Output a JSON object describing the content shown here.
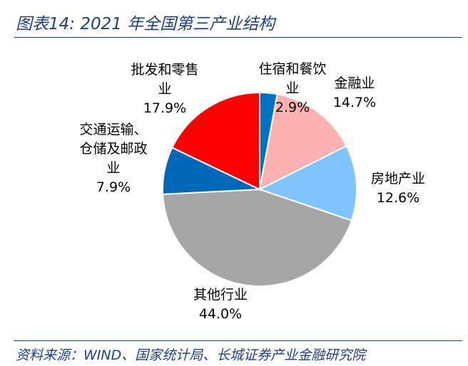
{
  "figure": {
    "title": "图表14:  2021 年全国第三产业结构",
    "source": "资料来源：WIND、国家统计局、长城证券产业金融研究院"
  },
  "chart_data": {
    "type": "pie",
    "title": "",
    "slices": [
      {
        "label": "住宿和餐饮业",
        "label_lines": [
          "住宿和餐饮",
          "业"
        ],
        "value": 2.9,
        "value_text": "2.9%",
        "color": "#0070c0"
      },
      {
        "label": "金融业",
        "label_lines": [
          "金融业"
        ],
        "value": 14.7,
        "value_text": "14.7%",
        "color": "#ffb0b0"
      },
      {
        "label": "房地产业",
        "label_lines": [
          "房地产业"
        ],
        "value": 12.6,
        "value_text": "12.6%",
        "color": "#7fc4ff"
      },
      {
        "label": "其他行业",
        "label_lines": [
          "其他行业"
        ],
        "value": 44.0,
        "value_text": "44.0%",
        "color": "#a6a6a6"
      },
      {
        "label": "交通运输、仓储及邮政业",
        "label_lines": [
          "交通运输、",
          "仓储及邮政",
          "业"
        ],
        "value": 7.9,
        "value_text": "7.9%",
        "color": "#0068b8"
      },
      {
        "label": "批发和零售业",
        "label_lines": [
          "批发和零售",
          "业"
        ],
        "value": 17.9,
        "value_text": "17.9%",
        "color": "#ff0000"
      }
    ],
    "start": "12 o'clock",
    "direction": "clockwise",
    "legend": "none"
  }
}
